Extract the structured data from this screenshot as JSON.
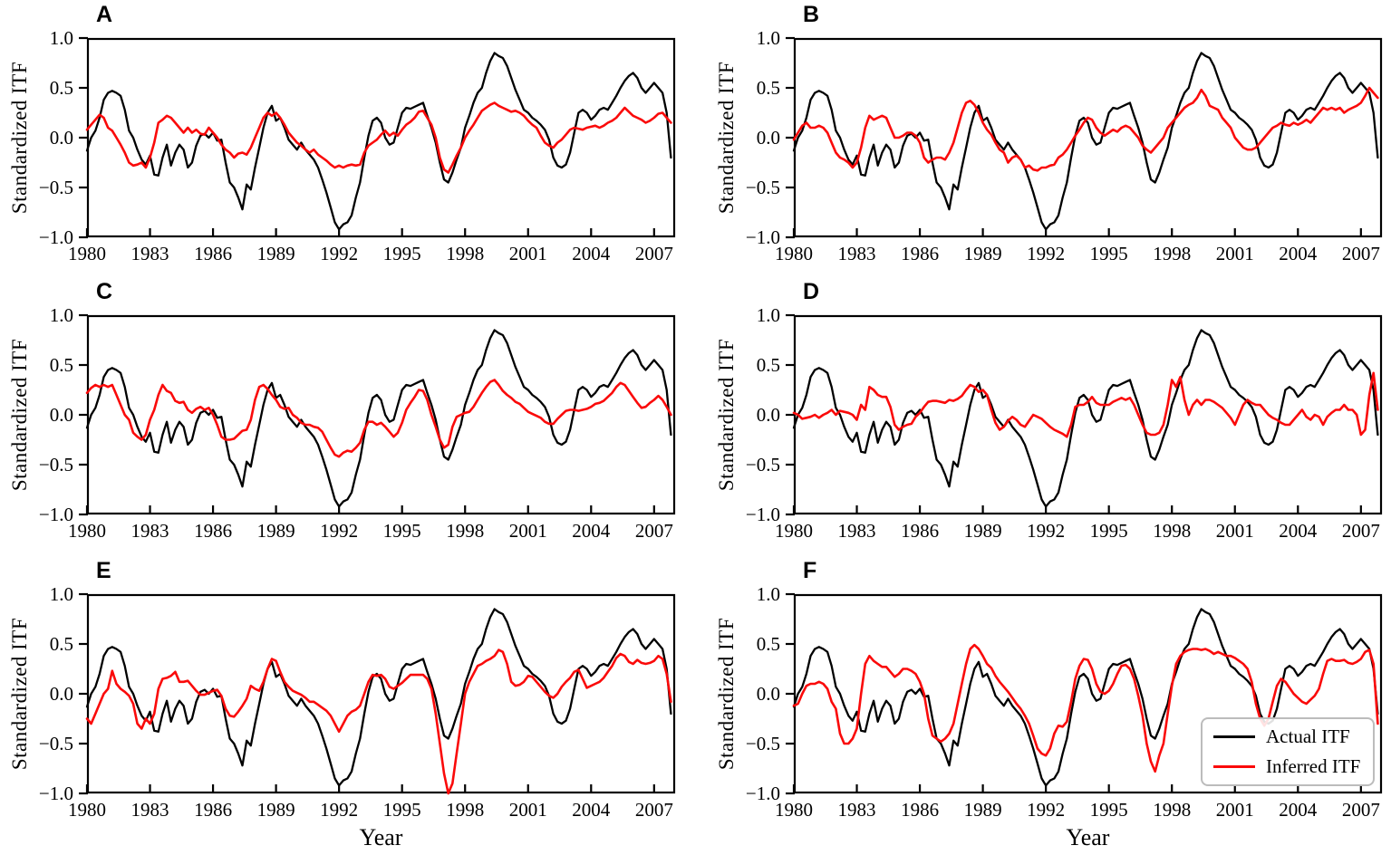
{
  "figure": {
    "background": "#ffffff",
    "frame_color": "#000000"
  },
  "legend": {
    "entries": [
      {
        "label": "Actual ITF",
        "color": "#000000"
      },
      {
        "label": "Inferred ITF",
        "color": "#fa0a0a"
      }
    ],
    "panel": "F",
    "position": "lower right",
    "border_color": "#bcbcbc"
  },
  "chart_data": {
    "type": "line",
    "x_start": 1980.0,
    "x_step": 0.2,
    "x_axis": {
      "label": "Year",
      "range": [
        1980,
        2008
      ],
      "ticks": [
        1980,
        1983,
        1986,
        1989,
        1992,
        1995,
        1998,
        2001,
        2004,
        2007
      ]
    },
    "y_axis": {
      "label": "Standardized ITF",
      "range": [
        -1.0,
        1.0
      ],
      "ticks": [
        1.0,
        0.5,
        0.0,
        -0.5,
        -1.0
      ],
      "tick_labels": [
        "1.0",
        "0.5",
        "0.0",
        "−0.5",
        "−1.0"
      ]
    },
    "grid": false,
    "series_names": [
      "Actual ITF",
      "Inferred ITF"
    ],
    "actual_itf": {
      "name": "Actual ITF",
      "color": "#000000",
      "values": [
        -0.13,
        0,
        0.07,
        0.2,
        0.38,
        0.45,
        0.47,
        0.45,
        0.42,
        0.28,
        0.07,
        0,
        -0.12,
        -0.22,
        -0.27,
        -0.18,
        -0.37,
        -0.38,
        -0.2,
        -0.07,
        -0.28,
        -0.15,
        -0.07,
        -0.12,
        -0.3,
        -0.25,
        -0.08,
        0.02,
        0.04,
        0,
        0.05,
        -0.03,
        -0.02,
        -0.25,
        -0.45,
        -0.5,
        -0.6,
        -0.72,
        -0.47,
        -0.52,
        -0.3,
        -0.1,
        0.1,
        0.25,
        0.32,
        0.17,
        0.2,
        0.1,
        -0.02,
        -0.07,
        -0.12,
        -0.05,
        -0.12,
        -0.17,
        -0.22,
        -0.3,
        -0.42,
        -0.55,
        -0.7,
        -0.85,
        -0.92,
        -0.87,
        -0.85,
        -0.78,
        -0.6,
        -0.45,
        -0.2,
        0.02,
        0.17,
        0.2,
        0.15,
        0,
        -0.07,
        -0.05,
        0.1,
        0.25,
        0.3,
        0.29,
        0.31,
        0.33,
        0.35,
        0.22,
        0.1,
        -0.05,
        -0.25,
        -0.42,
        -0.45,
        -0.35,
        -0.22,
        -0.1,
        0.1,
        0.22,
        0.35,
        0.45,
        0.5,
        0.65,
        0.77,
        0.85,
        0.82,
        0.8,
        0.72,
        0.6,
        0.48,
        0.38,
        0.28,
        0.25,
        0.2,
        0.17,
        0.13,
        0.08,
        -0.02,
        -0.2,
        -0.28,
        -0.3,
        -0.27,
        -0.15,
        0.05,
        0.25,
        0.28,
        0.25,
        0.18,
        0.22,
        0.28,
        0.3,
        0.28,
        0.35,
        0.42,
        0.5,
        0.57,
        0.62,
        0.65,
        0.6,
        0.5,
        0.45,
        0.5,
        0.55,
        0.5,
        0.45,
        0.25,
        -0.2
      ]
    },
    "panels": [
      {
        "label": "A",
        "inferred_itf": [
          0.08,
          0.13,
          0.18,
          0.23,
          0.2,
          0.1,
          0.07,
          0,
          -0.07,
          -0.15,
          -0.25,
          -0.28,
          -0.27,
          -0.25,
          -0.3,
          -0.2,
          -0.05,
          0.15,
          0.18,
          0.22,
          0.2,
          0.15,
          0.1,
          0.05,
          0.1,
          0.05,
          0.08,
          0.04,
          0.03,
          0.1,
          0.05,
          0,
          -0.07,
          -0.12,
          -0.15,
          -0.2,
          -0.16,
          -0.15,
          -0.17,
          -0.1,
          0,
          0.1,
          0.2,
          0.25,
          0.22,
          0.25,
          0.2,
          0.13,
          0.05,
          0,
          -0.05,
          -0.08,
          -0.12,
          -0.15,
          -0.12,
          -0.17,
          -0.2,
          -0.23,
          -0.27,
          -0.3,
          -0.28,
          -0.3,
          -0.28,
          -0.27,
          -0.28,
          -0.27,
          -0.15,
          -0.08,
          -0.05,
          -0.02,
          0.03,
          0.07,
          0.02,
          0.05,
          0.02,
          0.08,
          0.13,
          0.16,
          0.2,
          0.26,
          0.27,
          0.2,
          0.13,
          0,
          -0.2,
          -0.32,
          -0.35,
          -0.27,
          -0.18,
          -0.1,
          0,
          0.07,
          0.13,
          0.2,
          0.27,
          0.3,
          0.33,
          0.35,
          0.32,
          0.3,
          0.28,
          0.26,
          0.27,
          0.25,
          0.22,
          0.17,
          0.13,
          0.1,
          0.02,
          -0.05,
          -0.08,
          -0.1,
          -0.05,
          -0.02,
          0.03,
          0.08,
          0.1,
          0.09,
          0.08,
          0.1,
          0.11,
          0.12,
          0.1,
          0.12,
          0.15,
          0.17,
          0.2,
          0.25,
          0.3,
          0.26,
          0.22,
          0.2,
          0.18,
          0.15,
          0.17,
          0.2,
          0.24,
          0.25,
          0.2,
          0.15
        ]
      },
      {
        "label": "B",
        "inferred_itf": [
          -0.02,
          0.05,
          0.12,
          0.15,
          0.1,
          0.1,
          0.12,
          0.1,
          0.05,
          -0.05,
          -0.15,
          -0.2,
          -0.22,
          -0.25,
          -0.3,
          -0.25,
          -0.1,
          0.1,
          0.22,
          0.18,
          0.2,
          0.22,
          0.2,
          0.1,
          0,
          0,
          0.02,
          0.05,
          0.05,
          0.02,
          -0.05,
          -0.2,
          -0.25,
          -0.22,
          -0.2,
          -0.2,
          -0.22,
          -0.15,
          -0.05,
          0.1,
          0.25,
          0.35,
          0.37,
          0.33,
          0.25,
          0.15,
          0.08,
          0.03,
          -0.05,
          -0.12,
          -0.15,
          -0.25,
          -0.2,
          -0.18,
          -0.22,
          -0.3,
          -0.28,
          -0.32,
          -0.33,
          -0.3,
          -0.3,
          -0.28,
          -0.27,
          -0.2,
          -0.17,
          -0.12,
          -0.05,
          0.02,
          0.08,
          0.15,
          0.2,
          0.18,
          0.1,
          0.05,
          0.02,
          0.05,
          0.08,
          0.06,
          0.1,
          0.12,
          0.1,
          0.05,
          0,
          -0.08,
          -0.12,
          -0.15,
          -0.1,
          -0.05,
          0,
          0.1,
          0.15,
          0.2,
          0.25,
          0.3,
          0.33,
          0.35,
          0.4,
          0.48,
          0.42,
          0.32,
          0.3,
          0.28,
          0.2,
          0.15,
          0.1,
          0,
          -0.05,
          -0.1,
          -0.12,
          -0.12,
          -0.1,
          -0.05,
          0,
          0.05,
          0.1,
          0.12,
          0.15,
          0.13,
          0.12,
          0.15,
          0.13,
          0.15,
          0.18,
          0.15,
          0.2,
          0.25,
          0.3,
          0.28,
          0.3,
          0.28,
          0.3,
          0.25,
          0.28,
          0.3,
          0.32,
          0.35,
          0.42,
          0.5,
          0.45,
          0.4
        ]
      },
      {
        "label": "C",
        "inferred_itf": [
          0.22,
          0.27,
          0.3,
          0.28,
          0.3,
          0.28,
          0.3,
          0.2,
          0.1,
          0,
          -0.05,
          -0.18,
          -0.22,
          -0.25,
          -0.2,
          -0.05,
          0.05,
          0.2,
          0.3,
          0.24,
          0.22,
          0.14,
          0.12,
          0.13,
          0.05,
          0.02,
          0.06,
          0.08,
          0.05,
          0.07,
          0,
          -0.1,
          -0.22,
          -0.25,
          -0.25,
          -0.24,
          -0.2,
          -0.16,
          -0.15,
          -0.05,
          0.15,
          0.28,
          0.3,
          0.26,
          0.2,
          0.15,
          0.08,
          0.06,
          0.07,
          0,
          -0.03,
          -0.08,
          -0.1,
          -0.1,
          -0.12,
          -0.13,
          -0.17,
          -0.25,
          -0.33,
          -0.4,
          -0.42,
          -0.38,
          -0.36,
          -0.37,
          -0.33,
          -0.28,
          -0.15,
          -0.07,
          -0.07,
          -0.1,
          -0.08,
          -0.12,
          -0.17,
          -0.22,
          -0.18,
          -0.08,
          0.05,
          0.12,
          0.18,
          0.25,
          0.24,
          0.15,
          0,
          -0.12,
          -0.25,
          -0.33,
          -0.3,
          -0.12,
          -0.02,
          0,
          0.02,
          0.03,
          0.08,
          0.15,
          0.22,
          0.28,
          0.33,
          0.35,
          0.3,
          0.24,
          0.2,
          0.17,
          0.13,
          0.11,
          0.07,
          0.03,
          0.01,
          -0.01,
          -0.03,
          -0.07,
          -0.09,
          -0.09,
          -0.04,
          0,
          0.04,
          0.05,
          0.05,
          0.04,
          0.05,
          0.06,
          0.08,
          0.11,
          0.12,
          0.14,
          0.18,
          0.22,
          0.28,
          0.32,
          0.3,
          0.24,
          0.18,
          0.12,
          0.07,
          0.08,
          0.12,
          0.15,
          0.19,
          0.15,
          0.08,
          0
        ]
      },
      {
        "label": "D",
        "inferred_itf": [
          0.02,
          0,
          -0.04,
          -0.03,
          -0.02,
          0,
          -0.03,
          0,
          0.02,
          0.05,
          0,
          0.04,
          0.03,
          0.02,
          0,
          -0.05,
          0.1,
          0.05,
          0.28,
          0.25,
          0.2,
          0.18,
          0.18,
          0.08,
          -0.1,
          -0.15,
          -0.12,
          -0.1,
          -0.09,
          -0.02,
          0.02,
          0.08,
          0.13,
          0.14,
          0.14,
          0.13,
          0.12,
          0.15,
          0.14,
          0.16,
          0.19,
          0.25,
          0.3,
          0.28,
          0.23,
          0.25,
          0.2,
          0.05,
          -0.08,
          -0.15,
          -0.12,
          -0.06,
          -0.02,
          -0.05,
          -0.1,
          -0.12,
          -0.06,
          0,
          -0.02,
          -0.04,
          -0.08,
          -0.12,
          -0.15,
          -0.17,
          -0.19,
          -0.22,
          -0.1,
          0.08,
          0.1,
          0.1,
          0.13,
          0.18,
          0.12,
          0.1,
          0.1,
          0.1,
          0.13,
          0.15,
          0.17,
          0.15,
          0.17,
          0.1,
          0,
          -0.1,
          -0.18,
          -0.2,
          -0.2,
          -0.18,
          -0.1,
          0.1,
          0.35,
          0.28,
          0.38,
          0.15,
          0,
          0.1,
          0.15,
          0.1,
          0.15,
          0.15,
          0.13,
          0.1,
          0.07,
          0.02,
          -0.03,
          -0.1,
          0,
          0.1,
          0.15,
          0.12,
          0.1,
          0.1,
          0.05,
          0,
          -0.03,
          -0.05,
          -0.08,
          -0.1,
          -0.1,
          -0.05,
          0,
          0.05,
          -0.02,
          -0.05,
          0,
          -0.02,
          -0.1,
          -0.02,
          0.02,
          0.05,
          0.05,
          0.1,
          0.05,
          0.05,
          0,
          -0.2,
          -0.15,
          0.2,
          0.42,
          0.05
        ]
      },
      {
        "label": "E",
        "inferred_itf": [
          -0.25,
          -0.3,
          -0.2,
          -0.1,
          0,
          0.05,
          0.23,
          0.1,
          0.05,
          0.02,
          -0.02,
          -0.1,
          -0.3,
          -0.35,
          -0.25,
          -0.3,
          -0.2,
          0.05,
          0.15,
          0.16,
          0.18,
          0.22,
          0.12,
          0.12,
          0.13,
          0.08,
          0.03,
          -0.01,
          -0.01,
          0.01,
          0.03,
          0.04,
          -0.02,
          -0.15,
          -0.22,
          -0.23,
          -0.18,
          -0.12,
          -0.05,
          0.08,
          0.05,
          0.03,
          0.12,
          0.25,
          0.35,
          0.33,
          0.22,
          0.12,
          0.07,
          0.03,
          0.01,
          -0.01,
          -0.04,
          -0.08,
          -0.08,
          -0.11,
          -0.14,
          -0.17,
          -0.22,
          -0.3,
          -0.38,
          -0.3,
          -0.22,
          -0.18,
          -0.16,
          -0.12,
          0,
          0.12,
          0.19,
          0.18,
          0.19,
          0.15,
          0.07,
          0.05,
          0.08,
          0.11,
          0.15,
          0.19,
          0.19,
          0.19,
          0.19,
          0.15,
          0.05,
          -0.2,
          -0.5,
          -0.8,
          -1,
          -0.9,
          -0.6,
          -0.3,
          0,
          0.12,
          0.2,
          0.28,
          0.3,
          0.33,
          0.35,
          0.38,
          0.44,
          0.42,
          0.3,
          0.12,
          0.08,
          0.09,
          0.12,
          0.18,
          0.17,
          0.12,
          0.07,
          0.02,
          -0.02,
          -0.04,
          0,
          0.07,
          0.12,
          0.16,
          0.22,
          0.24,
          0.15,
          0.06,
          0.08,
          0.1,
          0.12,
          0.16,
          0.22,
          0.28,
          0.36,
          0.4,
          0.38,
          0.32,
          0.3,
          0.34,
          0.31,
          0.3,
          0.31,
          0.33,
          0.38,
          0.35,
          0.2,
          -0.08
        ]
      },
      {
        "label": "F",
        "inferred_itf": [
          -0.12,
          -0.1,
          0,
          0.08,
          0.1,
          0.1,
          0.12,
          0.1,
          0.05,
          -0.08,
          -0.15,
          -0.4,
          -0.5,
          -0.5,
          -0.45,
          -0.35,
          0,
          0.3,
          0.38,
          0.33,
          0.3,
          0.27,
          0.27,
          0.22,
          0.17,
          0.2,
          0.25,
          0.25,
          0.23,
          0.2,
          0.12,
          0,
          -0.25,
          -0.42,
          -0.45,
          -0.48,
          -0.45,
          -0.4,
          -0.3,
          -0.1,
          0.1,
          0.3,
          0.45,
          0.49,
          0.45,
          0.38,
          0.3,
          0.26,
          0.18,
          0.12,
          0.07,
          0.02,
          -0.04,
          -0.1,
          -0.15,
          -0.22,
          -0.3,
          -0.42,
          -0.55,
          -0.6,
          -0.62,
          -0.55,
          -0.4,
          -0.32,
          -0.33,
          -0.28,
          -0.08,
          0.15,
          0.28,
          0.35,
          0.34,
          0.25,
          0.1,
          0.02,
          0,
          0.03,
          0.1,
          0.2,
          0.28,
          0.29,
          0.25,
          0.15,
          -0.02,
          -0.22,
          -0.5,
          -0.68,
          -0.78,
          -0.62,
          -0.5,
          -0.2,
          0.08,
          0.3,
          0.38,
          0.42,
          0.44,
          0.45,
          0.45,
          0.44,
          0.45,
          0.43,
          0.4,
          0.42,
          0.4,
          0.38,
          0.38,
          0.36,
          0.33,
          0.3,
          0.25,
          0.12,
          -0.1,
          -0.25,
          -0.32,
          -0.25,
          -0.08,
          0.08,
          0.15,
          0.12,
          0.06,
          0,
          -0.04,
          -0.08,
          -0.1,
          -0.06,
          -0.02,
          0.05,
          0.2,
          0.33,
          0.35,
          0.33,
          0.33,
          0.34,
          0.31,
          0.3,
          0.32,
          0.35,
          0.42,
          0.44,
          0.3,
          -0.3
        ]
      }
    ]
  }
}
